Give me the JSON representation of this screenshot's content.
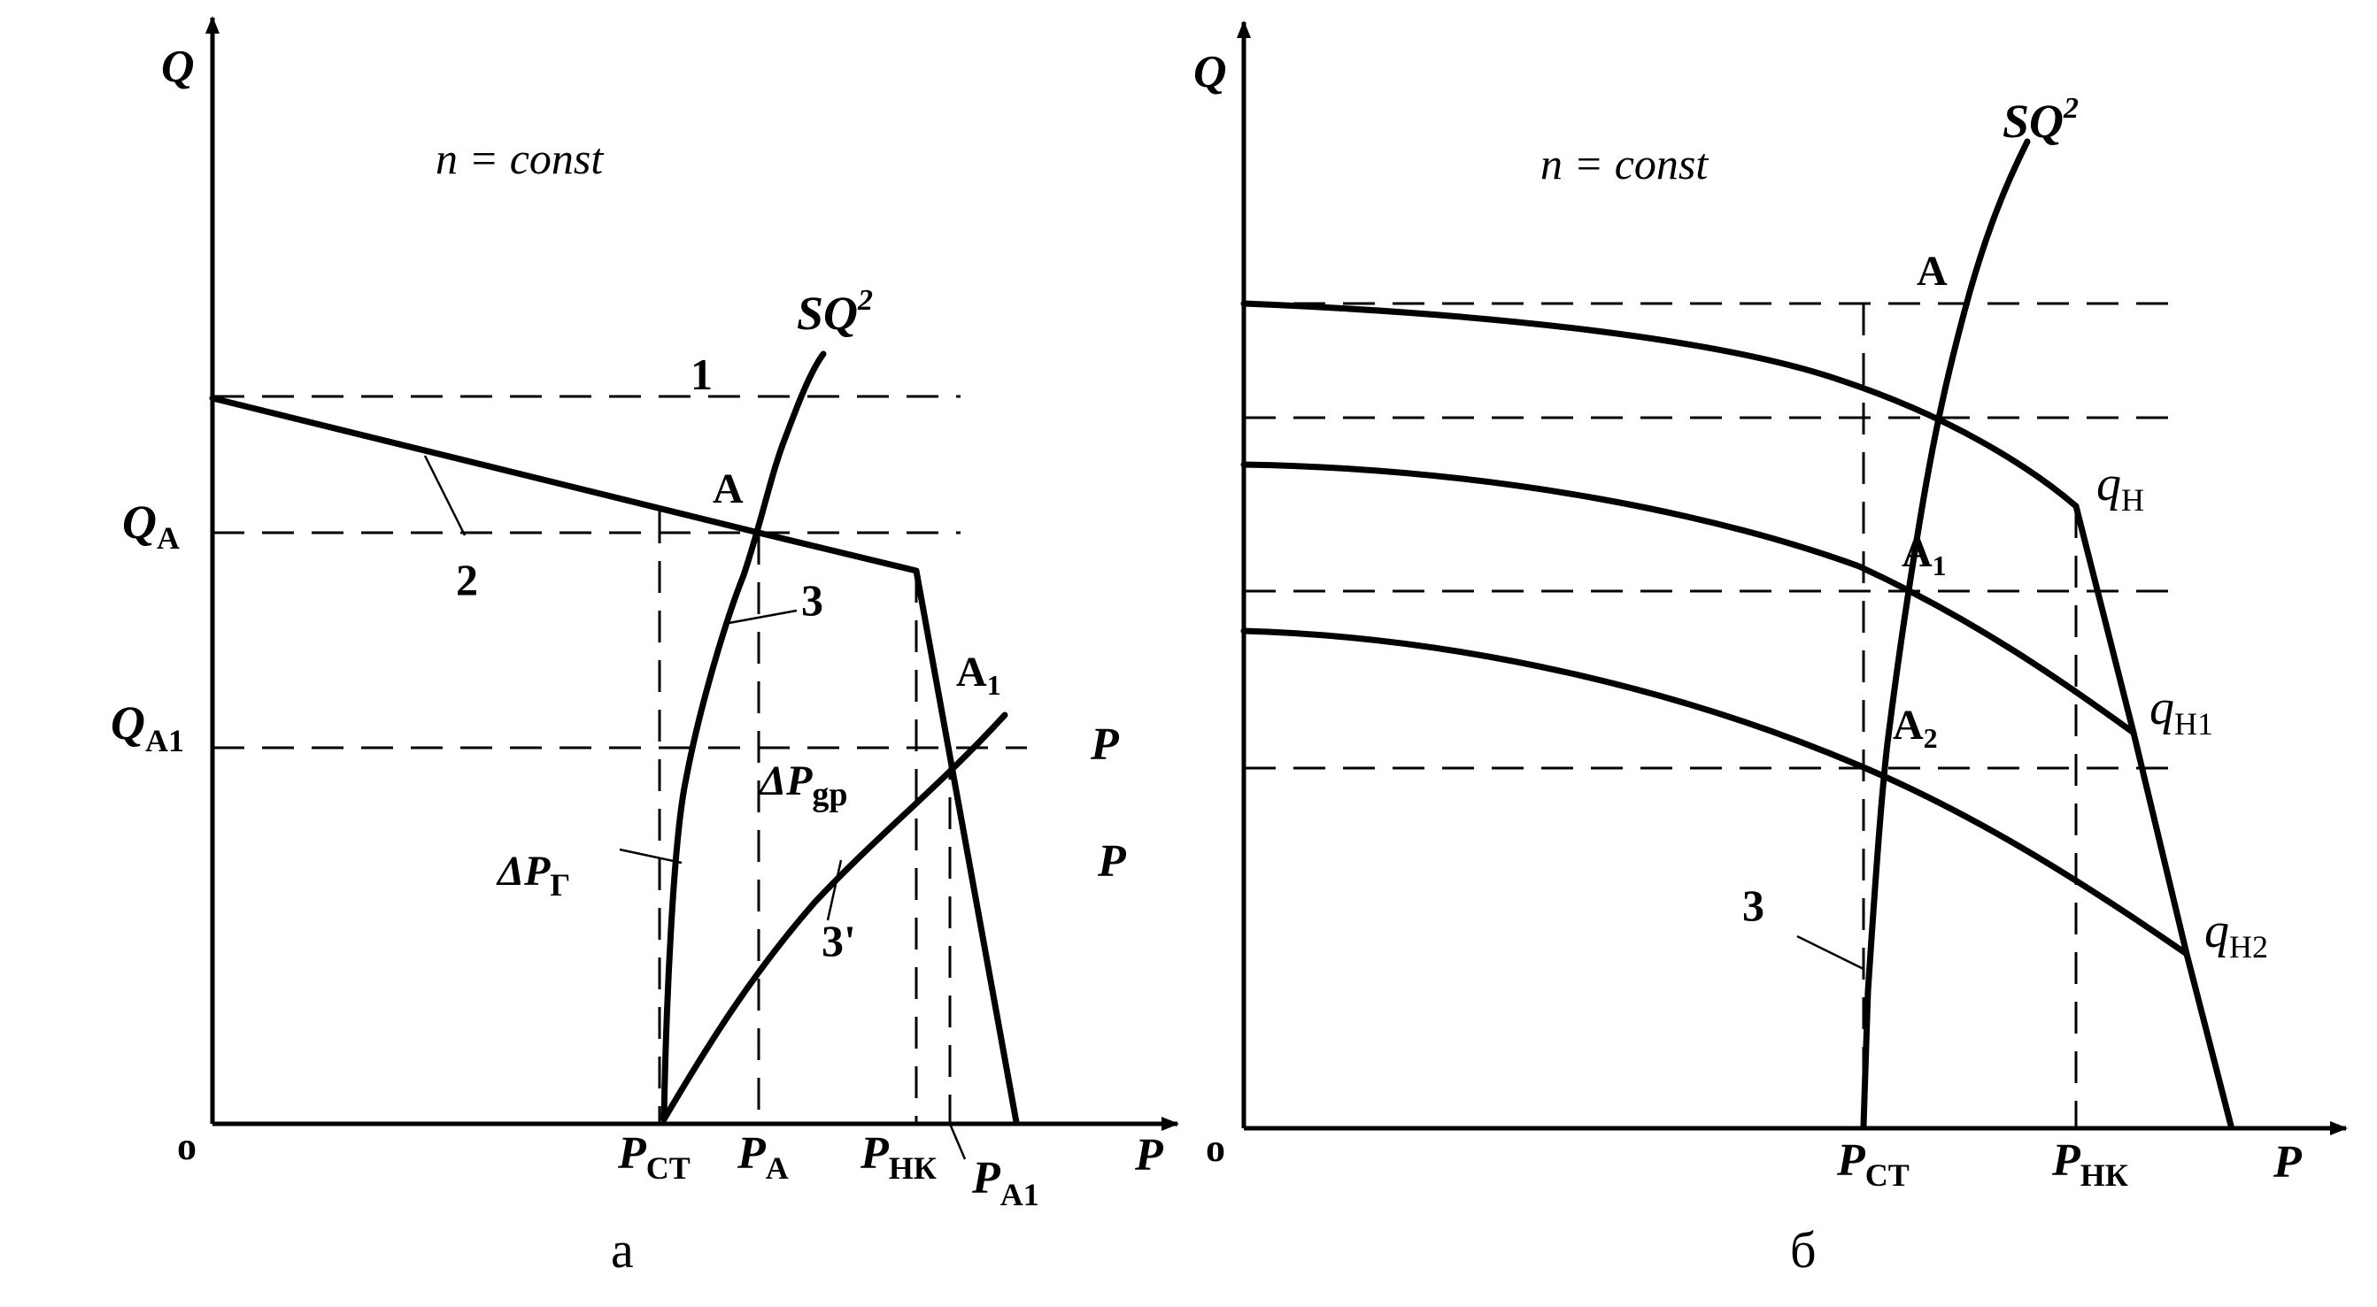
{
  "left": {
    "axis_y": "Q",
    "axis_x": "P",
    "origin": "o",
    "condition": "n = const",
    "sq2": "SQ",
    "sq2_exp": "2",
    "q_a_main": "Q",
    "q_a_sub": "A",
    "q_a1_main": "Q",
    "q_a1_sub": "A1",
    "label_1": "1",
    "label_2": "2",
    "label_3": "3",
    "label_3p": "3'",
    "point_a": "A",
    "point_a1_main": "A",
    "point_a1_sub": "1",
    "dp_gr_main": "ΔP",
    "dp_gr_sub": "gр",
    "dp_g_main": "ΔP",
    "dp_g_sub": "Г",
    "p_right_1": "P",
    "p_right_2": "P",
    "p_st_main": "P",
    "p_st_sub": "СТ",
    "p_a_main": "P",
    "p_a_sub": "A",
    "p_nk_main": "P",
    "p_nk_sub": "НК",
    "p_a1_main": "P",
    "p_a1_sub": "A1",
    "caption": "а"
  },
  "right": {
    "axis_y": "Q",
    "axis_x": "P",
    "origin": "o",
    "condition": "n = const",
    "sq2": "SQ",
    "sq2_exp": "2",
    "point_a": "A",
    "point_a1_main": "A",
    "point_a1_sub": "1",
    "point_a2_main": "A",
    "point_a2_sub": "2",
    "label_3": "3",
    "q_h_main": "q",
    "q_h_sub": "Н",
    "q_h1_main": "q",
    "q_h1_sub": "Н1",
    "q_h2_main": "q",
    "q_h2_sub": "Н2",
    "p_st_main": "P",
    "p_st_sub": "СТ",
    "p_nk_main": "P",
    "p_nk_sub": "НК",
    "caption": "б"
  }
}
